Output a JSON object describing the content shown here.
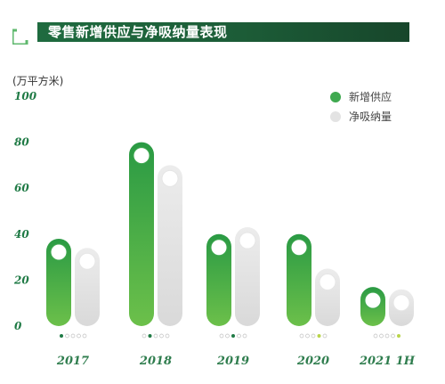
{
  "header": {
    "title": "零售新增供应与净吸纳量表现"
  },
  "unit_label": "(万平方米)",
  "colors": {
    "supply": "#3fa950",
    "absorption": "#e3e3e3",
    "header_band": "#1c5c37",
    "text_green": "#1f7a45"
  },
  "chart_data": {
    "type": "bar",
    "title": "零售新增供应与净吸纳量表现",
    "ylabel": "(万平方米)",
    "categories": [
      "2017",
      "2018",
      "2019",
      "2020",
      "2021 1H"
    ],
    "series": [
      {
        "name": "新增供应",
        "values": [
          38,
          80,
          40,
          40,
          17
        ]
      },
      {
        "name": "净吸纳量",
        "values": [
          34,
          70,
          43,
          25,
          16
        ]
      }
    ],
    "ylim": [
      0,
      100
    ],
    "yticks": [
      0,
      20,
      40,
      60,
      80,
      100
    ],
    "legend_position": "top-right",
    "grid": false
  }
}
